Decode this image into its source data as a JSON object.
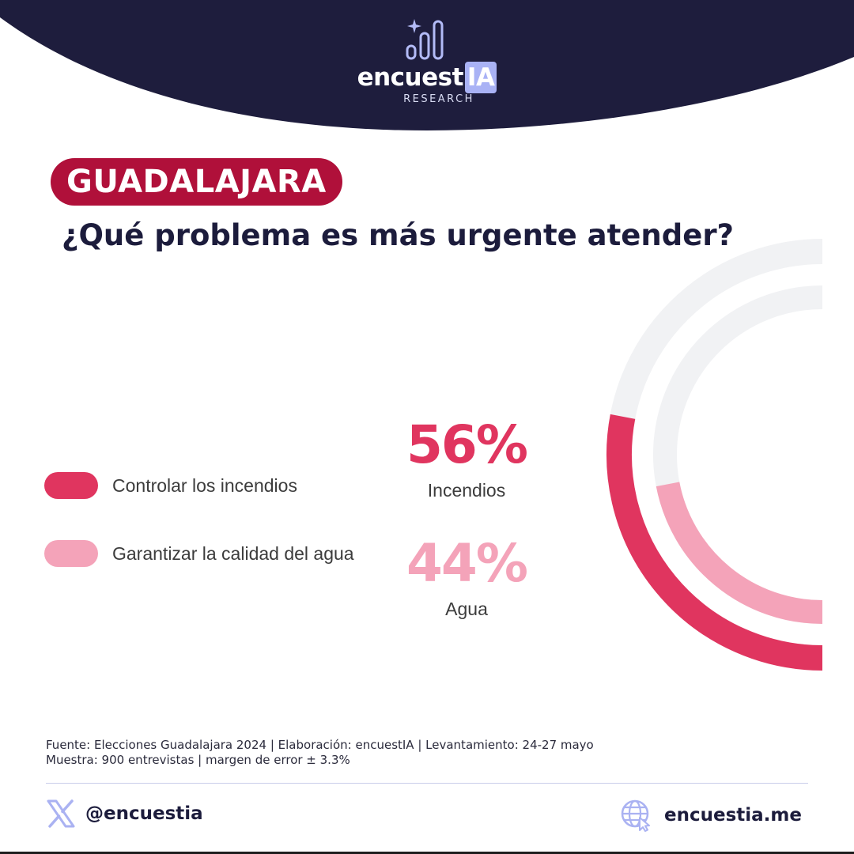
{
  "brand": {
    "name_main": "encuest",
    "name_highlight": "IA",
    "tagline": "RESEARCH"
  },
  "city": "GUADALAJARA",
  "question": "¿Qué problema es más urgente atender?",
  "colors": {
    "header_bg": "#1e1d3d",
    "badge_bg": "#b0103a",
    "incendios": "#e0355f",
    "agua": "#f4a3b9",
    "track": "#f1f2f4",
    "accent_lavender": "#a9b2f5"
  },
  "legend": [
    {
      "label": "Controlar los incendios",
      "color": "#e0355f"
    },
    {
      "label": "Garantizar la calidad del agua",
      "color": "#f4a3b9"
    }
  ],
  "results": [
    {
      "value_text": "56%",
      "label": "Incendios"
    },
    {
      "value_text": "44%",
      "label": "Agua"
    }
  ],
  "chart_data": {
    "type": "radial-bar",
    "categories": [
      "Incendios",
      "Agua"
    ],
    "values": [
      56,
      44
    ],
    "unit": "%",
    "max": 100
  },
  "source": "Fuente: Elecciones Guadalajara 2024 | Elaboración: encuestIA | Levantamiento: 24-27 mayo Muestra: 900 entrevistas | margen de error ± 3.3%",
  "footer": {
    "social_handle": "@encuestia",
    "social_icon": "x-logo-icon",
    "website": "encuestia.me",
    "website_icon": "globe-cursor-icon"
  }
}
